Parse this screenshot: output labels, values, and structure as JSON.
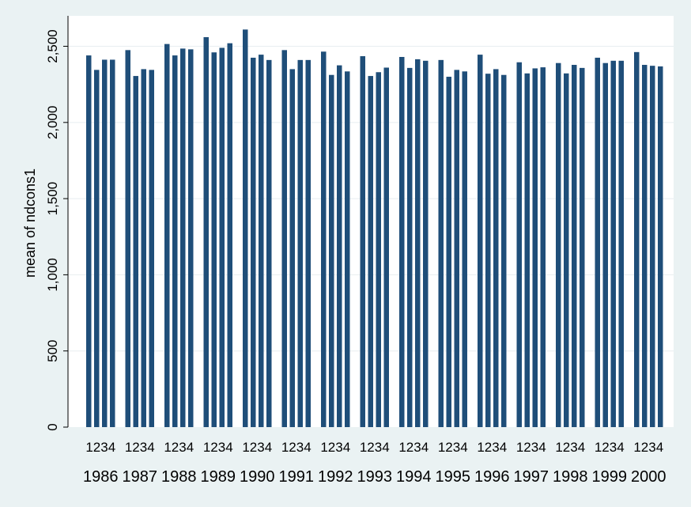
{
  "chart_data": {
    "type": "bar",
    "ylabel": "mean of ndcons1",
    "ylim": [
      0,
      2700
    ],
    "yticks": [
      0,
      500,
      1000,
      1500,
      2000,
      2500
    ],
    "ytick_labels": [
      "0",
      "500",
      "1,000",
      "1,500",
      "2,000",
      "2,500"
    ],
    "grid": true,
    "quarter_labels": [
      "1",
      "2",
      "3",
      "4"
    ],
    "groups": [
      {
        "year": "1986",
        "values": [
          2440,
          2345,
          2412,
          2412
        ]
      },
      {
        "year": "1987",
        "values": [
          2475,
          2305,
          2350,
          2345
        ]
      },
      {
        "year": "1988",
        "values": [
          2515,
          2440,
          2485,
          2480
        ]
      },
      {
        "year": "1989",
        "values": [
          2560,
          2460,
          2490,
          2520
        ]
      },
      {
        "year": "1990",
        "values": [
          2610,
          2425,
          2445,
          2410
        ]
      },
      {
        "year": "1991",
        "values": [
          2475,
          2350,
          2410,
          2410
        ]
      },
      {
        "year": "1992",
        "values": [
          2465,
          2312,
          2375,
          2335
        ]
      },
      {
        "year": "1993",
        "values": [
          2435,
          2305,
          2330,
          2360
        ]
      },
      {
        "year": "1994",
        "values": [
          2430,
          2358,
          2415,
          2405
        ]
      },
      {
        "year": "1995",
        "values": [
          2410,
          2300,
          2345,
          2335
        ]
      },
      {
        "year": "1996",
        "values": [
          2445,
          2320,
          2350,
          2312
        ]
      },
      {
        "year": "1997",
        "values": [
          2395,
          2322,
          2355,
          2362
        ]
      },
      {
        "year": "1998",
        "values": [
          2390,
          2322,
          2378,
          2358
        ]
      },
      {
        "year": "1999",
        "values": [
          2425,
          2390,
          2405,
          2405
        ]
      },
      {
        "year": "2000",
        "values": [
          2462,
          2378,
          2372,
          2368
        ]
      }
    ],
    "colors": {
      "bar": "#1f4e79",
      "plot_background": "#ffffff",
      "outer_background": "#eaf2f3",
      "gridline": "#e8eef0"
    }
  }
}
